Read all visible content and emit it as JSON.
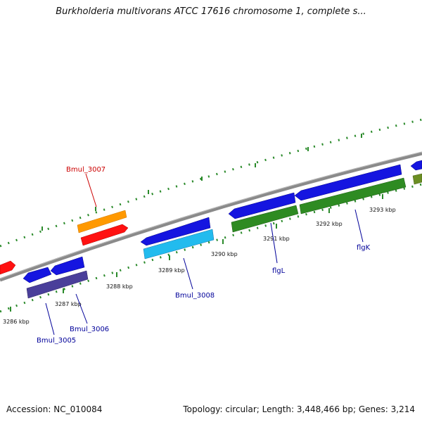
{
  "title": "Burkholderia multivorans ATCC 17616 chromosome 1, complete s...",
  "footer": {
    "accession": "Accession: NC_010084",
    "summary": "Topology: circular; Length: 3,448,466 bp; Genes: 3,214"
  },
  "colors": {
    "backbone": "#888888",
    "tick": "#2a8a2a",
    "forward_gene": "#1515e0",
    "reverse_gene_green": "#2e8b22",
    "label_red": "#cc0000",
    "label_blue": "#000099"
  },
  "ticks": [
    {
      "label": "3286 kbp"
    },
    {
      "label": "3287 kbp"
    },
    {
      "label": "3288 kbp"
    },
    {
      "label": "3289 kbp"
    },
    {
      "label": "3290 kbp"
    },
    {
      "label": "3291 kbp"
    },
    {
      "label": "3292 kbp"
    },
    {
      "label": "3293 kbp"
    }
  ],
  "genes": [
    {
      "name": "Bmul_3007",
      "color": "#cc0000"
    },
    {
      "name": "Bmul_3008",
      "color": "#000099"
    },
    {
      "name": "Bmul_3005",
      "color": "#000099"
    },
    {
      "name": "Bmul_3006",
      "color": "#000099"
    },
    {
      "name": "flgL",
      "color": "#000099"
    },
    {
      "name": "flgK",
      "color": "#000099"
    }
  ]
}
